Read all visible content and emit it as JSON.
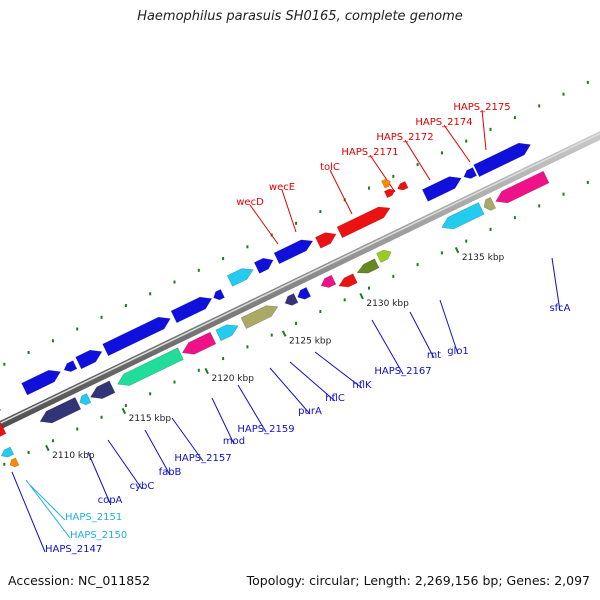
{
  "title": "Haemophilus parasuis SH0165, complete genome",
  "footer": {
    "accession": "Accession: NC_011852",
    "summary": "Topology: circular; Length: 2,269,156 bp; Genes: 2,097"
  },
  "ticks": [
    "2110 kbp",
    "2115 kbp",
    "2120 kbp",
    "2125 kbp",
    "2130 kbp",
    "2135 kbp"
  ],
  "gene_labels": {
    "above": [
      "wecD",
      "wecE",
      "tolC",
      "HAPS_2171",
      "HAPS_2172",
      "HAPS_2174",
      "HAPS_2175"
    ],
    "below": [
      "HAPS_2147",
      "HAPS_2150",
      "HAPS_2151",
      "copA",
      "cybC",
      "fabB",
      "HAPS_2157",
      "mod",
      "HAPS_2159",
      "purA",
      "hflC",
      "hflK",
      "HAPS_2167",
      "rnt",
      "glo1",
      "sfcA"
    ]
  },
  "colors": {
    "backbone": "#888888",
    "tick_marks": "#1e7a1e",
    "label_red": "#e00000",
    "label_blue": "#1010c8",
    "label_cyan": "#20b0e0",
    "gene_blue": "#1010dd",
    "gene_red": "#ee1111",
    "gene_cyan": "#22ccee",
    "gene_green": "#22dd99",
    "gene_magenta": "#ee1188",
    "gene_khaki": "#aaaa66",
    "gene_navy": "#333377",
    "gene_olive": "#668822",
    "gene_lime": "#99cc22",
    "gene_orange": "#ff8800",
    "gene_salmon": "#ee8888"
  }
}
